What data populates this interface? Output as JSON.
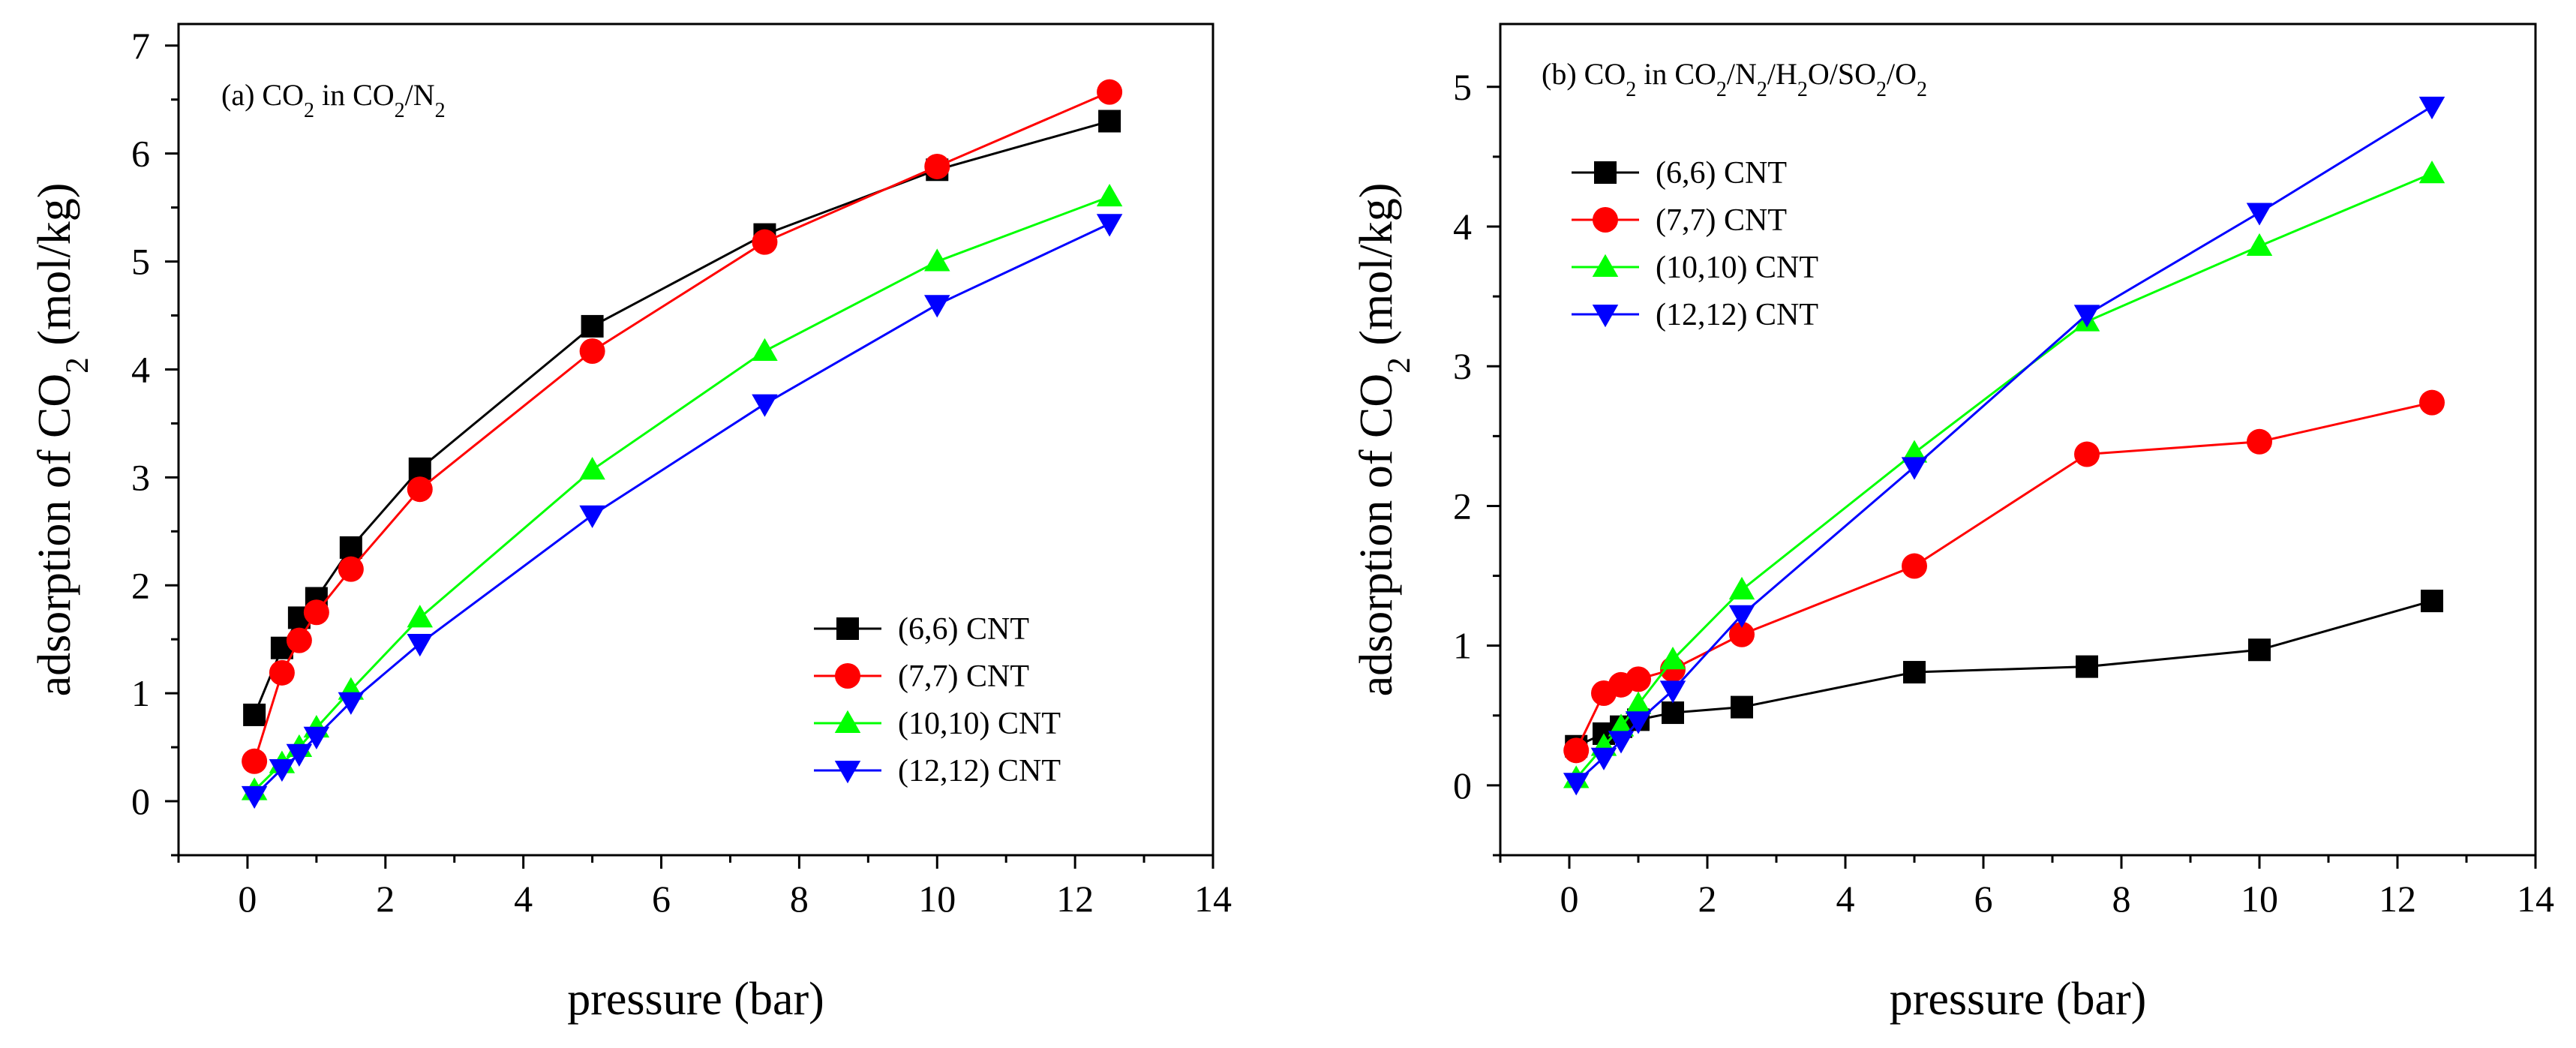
{
  "chart_data": [
    {
      "type": "line",
      "panel": "a",
      "title": {
        "prefix": "(a) CO",
        "sub1": "2",
        "mid": " in CO",
        "sub2": "2",
        "mid2": "/N",
        "sub3": "2"
      },
      "xlabel": "pressure (bar)",
      "ylabel": {
        "pre": "adsorption of CO",
        "sub": "2",
        "post": " (mol/kg)"
      },
      "xlim": [
        -1,
        14
      ],
      "ylim": [
        -0.5,
        7.2
      ],
      "xticks": [
        0,
        2,
        4,
        6,
        8,
        10,
        12,
        14
      ],
      "yticks": [
        0,
        1,
        2,
        3,
        4,
        5,
        6,
        7
      ],
      "legend_position": "lower-right",
      "series": [
        {
          "name": "(6,6) CNT",
          "color": "#000000",
          "marker": "square",
          "x": [
            0.1,
            0.5,
            0.75,
            1.0,
            1.5,
            2.5,
            5.0,
            7.5,
            10.0,
            12.5
          ],
          "y": [
            0.8,
            1.42,
            1.7,
            1.88,
            2.35,
            3.08,
            4.4,
            5.25,
            5.85,
            6.3
          ]
        },
        {
          "name": "(7,7) CNT",
          "color": "#ff0000",
          "marker": "circle",
          "x": [
            0.1,
            0.5,
            0.75,
            1.0,
            1.5,
            2.5,
            5.0,
            7.5,
            10.0,
            12.5
          ],
          "y": [
            0.37,
            1.19,
            1.49,
            1.75,
            2.15,
            2.89,
            4.17,
            5.18,
            5.88,
            6.57
          ]
        },
        {
          "name": "(10,10) CNT",
          "color": "#00ff00",
          "marker": "triangle-up",
          "x": [
            0.1,
            0.5,
            0.75,
            1.0,
            1.5,
            2.5,
            5.0,
            7.5,
            10.0,
            12.5
          ],
          "y": [
            0.1,
            0.35,
            0.5,
            0.68,
            1.03,
            1.7,
            3.07,
            4.17,
            5.0,
            5.6
          ]
        },
        {
          "name": "(12,12) CNT",
          "color": "#0000ff",
          "marker": "triangle-down",
          "x": [
            0.1,
            0.5,
            0.75,
            1.0,
            1.5,
            2.5,
            5.0,
            7.5,
            10.0,
            12.5
          ],
          "y": [
            0.05,
            0.3,
            0.44,
            0.6,
            0.92,
            1.46,
            2.65,
            3.68,
            4.6,
            5.35
          ]
        }
      ]
    },
    {
      "type": "line",
      "panel": "b",
      "title": {
        "prefix": "(b) CO",
        "sub1": "2",
        "mid": " in CO",
        "sub2": "2",
        "mid2": "/N",
        "sub3": "2",
        "mid3": "/H",
        "sub4": "2",
        "mid4": "O/SO",
        "sub5": "2",
        "mid5": "/O",
        "sub6": "2"
      },
      "xlabel": "pressure (bar)",
      "ylabel": {
        "pre": "adsorption of CO",
        "sub": "2",
        "post": " (mol/kg)"
      },
      "xlim": [
        -1,
        14
      ],
      "ylim": [
        -0.5,
        5.45
      ],
      "xticks": [
        0,
        2,
        4,
        6,
        8,
        10,
        12,
        14
      ],
      "yticks": [
        0,
        1,
        2,
        3,
        4,
        5
      ],
      "legend_position": "upper-left",
      "series": [
        {
          "name": "(6,6) CNT",
          "color": "#000000",
          "marker": "square",
          "x": [
            0.1,
            0.5,
            0.75,
            1.0,
            1.5,
            2.5,
            5.0,
            7.5,
            10.0,
            12.5
          ],
          "y": [
            0.28,
            0.37,
            0.42,
            0.47,
            0.52,
            0.56,
            0.81,
            0.85,
            0.97,
            1.32
          ]
        },
        {
          "name": "(7,7) CNT",
          "color": "#ff0000",
          "marker": "circle",
          "x": [
            0.1,
            0.5,
            0.75,
            1.0,
            1.5,
            2.5,
            5.0,
            7.5,
            10.0,
            12.5
          ],
          "y": [
            0.25,
            0.66,
            0.72,
            0.76,
            0.83,
            1.08,
            1.57,
            2.37,
            2.46,
            2.74
          ]
        },
        {
          "name": "(10,10) CNT",
          "color": "#00ff00",
          "marker": "triangle-up",
          "x": [
            0.1,
            0.5,
            0.75,
            1.0,
            1.5,
            2.5,
            5.0,
            7.5,
            10.0,
            12.5
          ],
          "y": [
            0.05,
            0.28,
            0.42,
            0.58,
            0.9,
            1.4,
            2.38,
            3.32,
            3.86,
            4.38
          ]
        },
        {
          "name": "(12,12) CNT",
          "color": "#0000ff",
          "marker": "triangle-down",
          "x": [
            0.1,
            0.5,
            0.75,
            1.0,
            1.5,
            2.5,
            5.0,
            7.5,
            10.0,
            12.5
          ],
          "y": [
            0.02,
            0.2,
            0.32,
            0.46,
            0.68,
            1.22,
            2.28,
            3.37,
            4.1,
            4.86
          ]
        }
      ]
    }
  ]
}
